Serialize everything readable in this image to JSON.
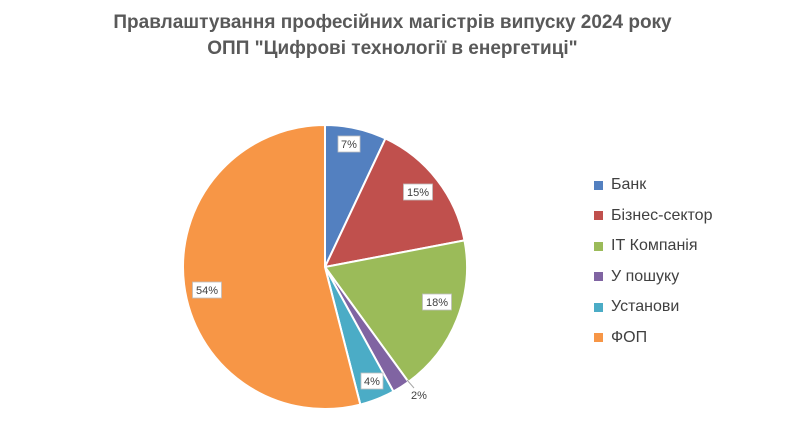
{
  "chart_data": {
    "type": "pie",
    "title": "Правлаштування професійних магістрів випуску 2024 року",
    "subtitle": "ОПП \"Цифрові технології в енергетиці\"",
    "categories": [
      "Банк",
      "Бізнес-сектор",
      "ІТ Компанія",
      "У пошуку",
      "Установи",
      "ФОП"
    ],
    "values": [
      7,
      15,
      18,
      2,
      4,
      54
    ],
    "data_labels": [
      "7%",
      "15%",
      "18%",
      "2%",
      "4%",
      "54%"
    ],
    "colors": [
      "#5380C0",
      "#C0504D",
      "#9BBB59",
      "#8064A2",
      "#4BACC6",
      "#F79646"
    ],
    "legend_position": "right"
  }
}
